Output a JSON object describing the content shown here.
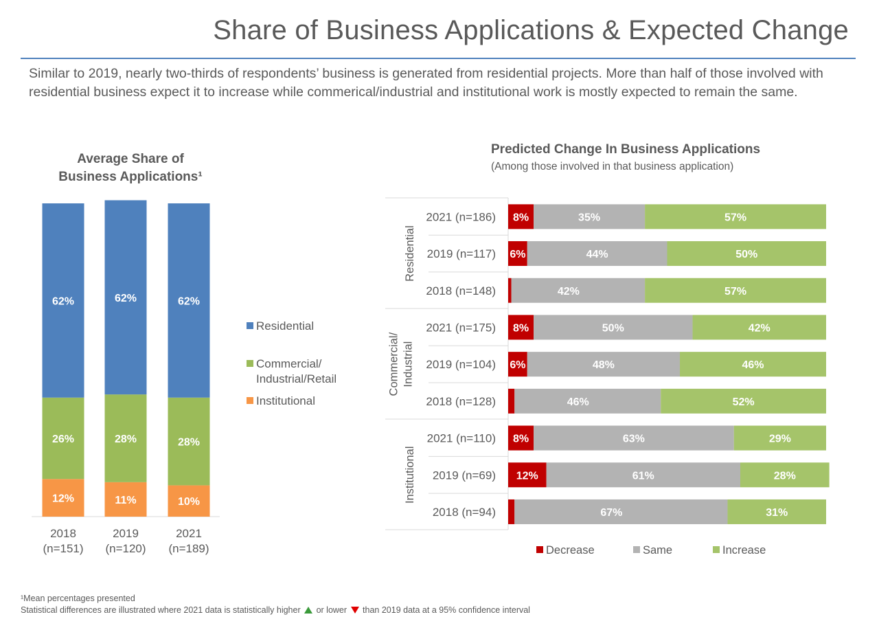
{
  "page": {
    "title": "Share of Business Applications & Expected Change",
    "subtitle": "Similar to 2019, nearly two-thirds of respondents’ business is generated from residential projects. More than half of those involved with residential business expect it to increase while commerical/industrial and institutional work is mostly expected to remain the same.",
    "footnote_mean": "¹Mean percentages presented",
    "footnote_stats_before": "Statistical differences are illustrated where 2021 data is statistically higher",
    "footnote_stats_middle": "or lower",
    "footnote_stats_after": "than 2019 data at a 95% confidence interval"
  },
  "chart_data": [
    {
      "type": "bar",
      "stacked": true,
      "title_line1": "Average Share of",
      "title_line2": "Business Applications¹",
      "categories": [
        {
          "year": "2018",
          "n": "(n=151)"
        },
        {
          "year": "2019",
          "n": "(n=120)"
        },
        {
          "year": "2021",
          "n": "(n=189)"
        }
      ],
      "series": [
        {
          "name": "Institutional",
          "color": "#f79646",
          "values": [
            12,
            11,
            10
          ]
        },
        {
          "name": "Commercial/ Industrial/Retail",
          "color": "#9bbb59",
          "values": [
            26,
            28,
            28
          ]
        },
        {
          "name": "Residential",
          "color": "#4f81bd",
          "values": [
            62,
            62,
            62
          ]
        }
      ],
      "legend": [
        {
          "lines": [
            "Residential"
          ],
          "color": "#4f81bd"
        },
        {
          "lines": [
            "Commercial/",
            "Industrial/Retail"
          ],
          "color": "#9bbb59"
        },
        {
          "lines": [
            "Institutional"
          ],
          "color": "#f79646"
        }
      ],
      "ylim": [
        0,
        100
      ]
    },
    {
      "type": "bar",
      "orientation": "horizontal",
      "stacked": true,
      "title": "Predicted Change In Business Applications",
      "subtitle": "(Among those involved in that business application)",
      "groups": [
        {
          "name": "Residential",
          "rows": [
            {
              "label": "2021 (n=186)",
              "values": [
                8,
                35,
                57
              ]
            },
            {
              "label": "2019 (n=117)",
              "values": [
                6,
                44,
                50
              ]
            },
            {
              "label": "2018 (n=148)",
              "values": [
                1,
                42,
                57
              ]
            }
          ]
        },
        {
          "name_lines": [
            "Commercial/",
            "Industrial"
          ],
          "rows": [
            {
              "label": "2021 (n=175)",
              "values": [
                8,
                50,
                42
              ]
            },
            {
              "label": "2019 (n=104)",
              "values": [
                6,
                48,
                46
              ]
            },
            {
              "label": "2018 (n=128)",
              "values": [
                2,
                46,
                52
              ]
            }
          ]
        },
        {
          "name": "Institutional",
          "rows": [
            {
              "label": "2021 (n=110)",
              "values": [
                8,
                63,
                29
              ]
            },
            {
              "label": "2019 (n=69)",
              "values": [
                12,
                61,
                28
              ]
            },
            {
              "label": "2018 (n=94)",
              "values": [
                2,
                67,
                31
              ]
            }
          ]
        }
      ],
      "series": [
        {
          "name": "Decrease",
          "color": "#c00000"
        },
        {
          "name": "Same",
          "color": "#b3b3b3"
        },
        {
          "name": "Increase",
          "color": "#a5c46a"
        }
      ],
      "xlim": [
        0,
        100
      ]
    }
  ]
}
